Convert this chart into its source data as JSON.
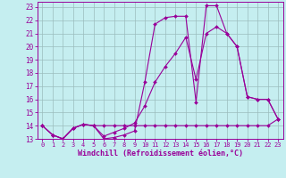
{
  "xlabel": "Windchill (Refroidissement éolien,°C)",
  "background_color": "#c5eef0",
  "line_color": "#990099",
  "grid_color": "#9bbcbd",
  "xlim": [
    -0.5,
    23.5
  ],
  "ylim": [
    13,
    23.4
  ],
  "xticks": [
    0,
    1,
    2,
    3,
    4,
    5,
    6,
    7,
    8,
    9,
    10,
    11,
    12,
    13,
    14,
    15,
    16,
    17,
    18,
    19,
    20,
    21,
    22,
    23
  ],
  "yticks": [
    13,
    14,
    15,
    16,
    17,
    18,
    19,
    20,
    21,
    22,
    23
  ],
  "line1_x": [
    0,
    1,
    2,
    3,
    4,
    5,
    6,
    7,
    8,
    9,
    10,
    11,
    12,
    13,
    14,
    15,
    16,
    17,
    18,
    19,
    20,
    21,
    22,
    23
  ],
  "line1_y": [
    14.0,
    13.3,
    13.0,
    13.8,
    14.1,
    14.0,
    13.0,
    13.1,
    13.3,
    13.6,
    17.3,
    21.7,
    22.2,
    22.3,
    22.3,
    15.8,
    23.1,
    23.1,
    21.0,
    20.0,
    16.2,
    16.0,
    16.0,
    14.5
  ],
  "line2_x": [
    0,
    1,
    2,
    3,
    4,
    5,
    6,
    7,
    8,
    9,
    10,
    11,
    12,
    13,
    14,
    15,
    16,
    17,
    18,
    19,
    20,
    21,
    22,
    23
  ],
  "line2_y": [
    14.0,
    13.3,
    13.0,
    13.8,
    14.1,
    14.0,
    14.0,
    14.0,
    14.0,
    14.0,
    14.0,
    14.0,
    14.0,
    14.0,
    14.0,
    14.0,
    14.0,
    14.0,
    14.0,
    14.0,
    14.0,
    14.0,
    14.0,
    14.5
  ],
  "line3_x": [
    0,
    1,
    2,
    3,
    4,
    5,
    6,
    7,
    8,
    9,
    10,
    11,
    12,
    13,
    14,
    15,
    16,
    17,
    18,
    19,
    20,
    21,
    22,
    23
  ],
  "line3_y": [
    14.0,
    13.3,
    13.0,
    13.8,
    14.1,
    14.0,
    13.2,
    13.5,
    13.8,
    14.2,
    15.5,
    17.3,
    18.5,
    19.5,
    20.7,
    17.5,
    21.0,
    21.5,
    21.0,
    20.0,
    16.2,
    16.0,
    16.0,
    14.5
  ]
}
